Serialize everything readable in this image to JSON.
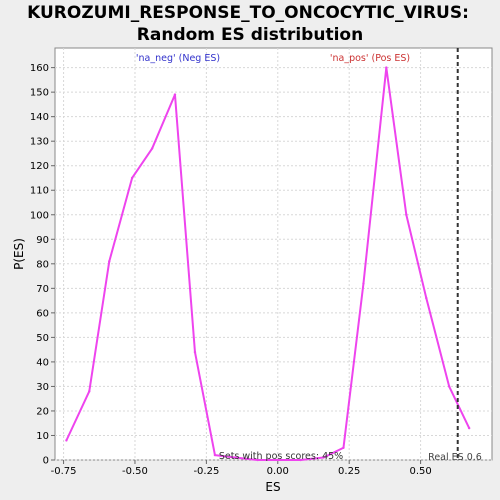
{
  "chart_data": {
    "type": "line",
    "title_line1": "KUROZUMI_RESPONSE_TO_ONCOCYTIC_VIRUS:",
    "title_line2": "Random ES distribution",
    "xlabel": "ES",
    "ylabel": "P(ES)",
    "xlim": [
      -0.78,
      0.75
    ],
    "ylim": [
      0,
      168
    ],
    "xticks": [
      -0.75,
      -0.5,
      -0.25,
      0.0,
      0.25,
      0.5
    ],
    "xtick_labels": [
      "-0.75",
      "-0.50",
      "-0.25",
      "0.00",
      "0.25",
      "0.50"
    ],
    "yticks": [
      0,
      10,
      20,
      30,
      40,
      50,
      60,
      70,
      80,
      90,
      100,
      110,
      120,
      130,
      140,
      150,
      160
    ],
    "ytick_labels": [
      "0",
      "10",
      "20",
      "30",
      "40",
      "50",
      "60",
      "70",
      "80",
      "90",
      "100",
      "110",
      "120",
      "130",
      "140",
      "150",
      "160"
    ],
    "grid": true,
    "series": [
      {
        "name": "P(ES)",
        "color": "#ee44ee",
        "x": [
          -0.74,
          -0.66,
          -0.59,
          -0.51,
          -0.44,
          -0.36,
          -0.29,
          -0.22,
          -0.15,
          -0.07,
          0.0,
          0.08,
          0.16,
          0.23,
          0.3,
          0.38,
          0.45,
          0.52,
          0.6,
          0.67
        ],
        "y": [
          8,
          28,
          81,
          115,
          127,
          149,
          44,
          2,
          1,
          0,
          0,
          0,
          1,
          5,
          72,
          160,
          100,
          66,
          30,
          13
        ]
      }
    ],
    "real_es": 0.63,
    "real_es_label": "Real ES 0.6",
    "neg_label": "'na_neg' (Neg ES)",
    "pos_label": "'na_pos' (Pos ES)",
    "pos_scores_label": "Sets with pos scores: 45%",
    "neg_color": "#3333cc",
    "pos_color": "#cc3333"
  }
}
